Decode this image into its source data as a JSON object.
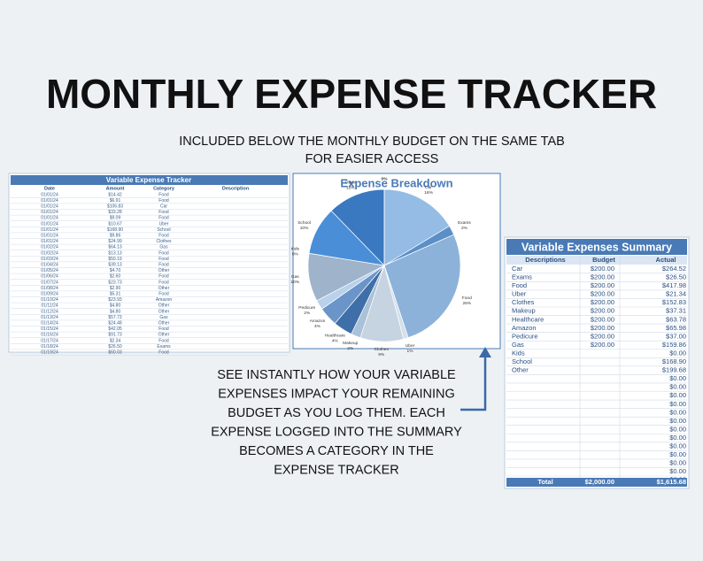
{
  "header": {
    "title": "MONTHLY EXPENSE TRACKER",
    "subtitle_lines": [
      "INCLUDED BELOW THE MONTHLY BUDGET ON THE SAME TAB",
      "FOR EASIER ACCESS"
    ]
  },
  "tracker": {
    "title": "Variable Expense Tracker",
    "columns": [
      "Date",
      "Amount",
      "Category",
      "Description"
    ],
    "rows": [
      [
        "01/01/24",
        "$14.42",
        "Food"
      ],
      [
        "01/01/24",
        "$6.91",
        "Food"
      ],
      [
        "01/01/24",
        "$106.83",
        "Car"
      ],
      [
        "01/01/24",
        "$33.28",
        "Food"
      ],
      [
        "01/01/24",
        "$9.09",
        "Food"
      ],
      [
        "01/01/24",
        "$10.67",
        "Uber"
      ],
      [
        "01/01/24",
        "$168.90",
        "School"
      ],
      [
        "01/01/24",
        "$9.86",
        "Food"
      ],
      [
        "01/01/24",
        "$24.99",
        "Clothes"
      ],
      [
        "01/02/24",
        "$64.13",
        "Gas"
      ],
      [
        "01/02/24",
        "$13.13",
        "Food"
      ],
      [
        "01/03/24",
        "$50.19",
        "Food"
      ],
      [
        "01/04/24",
        "$39.13",
        "Food"
      ],
      [
        "01/05/24",
        "$4.70",
        "Other"
      ],
      [
        "01/06/24",
        "$2.60",
        "Food"
      ],
      [
        "01/07/24",
        "$23.73",
        "Food"
      ],
      [
        "01/08/24",
        "$2.90",
        "Other"
      ],
      [
        "01/09/24",
        "$5.31",
        "Food"
      ],
      [
        "01/10/24",
        "$23.93",
        "Amazon"
      ],
      [
        "01/11/24",
        "$4.80",
        "Other"
      ],
      [
        "01/12/24",
        "$4.80",
        "Other"
      ],
      [
        "01/13/24",
        "$57.73",
        "Gas"
      ],
      [
        "01/14/24",
        "$24.48",
        "Other"
      ],
      [
        "01/15/24",
        "$42.05",
        "Food"
      ],
      [
        "01/16/24",
        "$91.73",
        "Other"
      ],
      [
        "01/17/24",
        "$2.34",
        "Food"
      ],
      [
        "01/18/24",
        "$26.50",
        "Exams"
      ],
      [
        "01/19/24",
        "$60.03",
        "Food"
      ]
    ]
  },
  "chart_data": {
    "type": "pie",
    "title": "Expense Breakdown",
    "categories": [
      "Car",
      "Exams",
      "Food",
      "Uber",
      "Clothes",
      "Makeup",
      "Healthcare",
      "Amazon",
      "Pedicure",
      "Gas",
      "Kids",
      "School",
      "Other",
      null
    ],
    "values": [
      16,
      2,
      26,
      1,
      9,
      2,
      4,
      4,
      2,
      10,
      0,
      10,
      12,
      0
    ],
    "value_labels": [
      "16%",
      "2%",
      "26%",
      "1%",
      "9%",
      "2%",
      "4%",
      "4%",
      "2%",
      "10%",
      "0%",
      "10%",
      "12%",
      "0%"
    ],
    "colors": [
      "#94bce4",
      "#5a8fc8",
      "#8cb2da",
      "#d4dfea",
      "#c6d3e0",
      "#a9c1d9",
      "#3f6fa8",
      "#6b95c8",
      "#b9d1ea",
      "#9fb3ca",
      "#5590d0",
      "#4a8ed8",
      "#3a78c0",
      "#2060a0"
    ]
  },
  "summary": {
    "title": "Variable Expenses Summary",
    "columns": [
      "Descriptions",
      "Budget",
      "Actual"
    ],
    "rows": [
      [
        "Car",
        "$200.00",
        "$264.52"
      ],
      [
        "Exams",
        "$200.00",
        "$26.50"
      ],
      [
        "Food",
        "$200.00",
        "$417.98"
      ],
      [
        "Uber",
        "$200.00",
        "$21.34"
      ],
      [
        "Clothes",
        "$200.00",
        "$152.83"
      ],
      [
        "Makeup",
        "$200.00",
        "$37.31"
      ],
      [
        "Healthcare",
        "$200.00",
        "$63.78"
      ],
      [
        "Amazon",
        "$200.00",
        "$65.98"
      ],
      [
        "Pedicure",
        "$200.00",
        "$37.00"
      ],
      [
        "Gas",
        "$200.00",
        "$159.86"
      ],
      [
        "Kids",
        null,
        "$0.00"
      ],
      [
        "School",
        null,
        "$168.90"
      ],
      [
        "Other",
        null,
        "$199.68"
      ],
      [
        null,
        null,
        "$0.00"
      ],
      [
        null,
        null,
        "$0.00"
      ],
      [
        null,
        null,
        "$0.00"
      ],
      [
        null,
        null,
        "$0.00"
      ],
      [
        null,
        null,
        "$0.00"
      ],
      [
        null,
        null,
        "$0.00"
      ],
      [
        null,
        null,
        "$0.00"
      ],
      [
        null,
        null,
        "$0.00"
      ],
      [
        null,
        null,
        "$0.00"
      ],
      [
        null,
        null,
        "$0.00"
      ],
      [
        null,
        null,
        "$0.00"
      ],
      [
        null,
        null,
        "$0.00"
      ],
      [
        null,
        null,
        "$0.00"
      ]
    ],
    "total": [
      "Total",
      "$2,000.00",
      "$1,615.68"
    ]
  },
  "callout": {
    "lines": [
      "SEE INSTANTLY HOW YOUR VARIABLE",
      "EXPENSES IMPACT YOUR REMAINING",
      "BUDGET AS YOU LOG THEM. EACH",
      "EXPENSE LOGGED INTO THE SUMMARY",
      "BECOMES A CATEGORY IN THE",
      "EXPENSE TRACKER"
    ]
  }
}
